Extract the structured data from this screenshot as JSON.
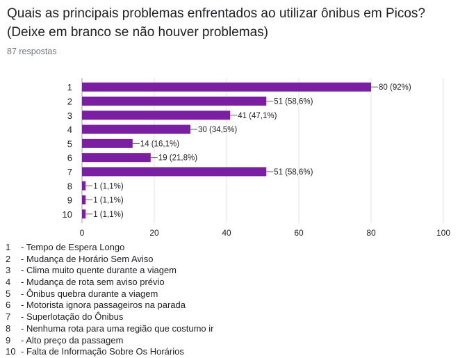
{
  "question": {
    "title_line1": "Quais as principais problemas enfrentados ao utilizar ônibus em Picos?",
    "title_line2": "(Deixe em branco se não houver problemas)",
    "responses": "87 respostas"
  },
  "colors": {
    "bar": "#7b1fa2",
    "grid": "#e0e0e0",
    "axis_text": "#202124",
    "label_text": "#202124"
  },
  "chart_data": {
    "type": "bar",
    "orientation": "horizontal",
    "categories": [
      "1",
      "2",
      "3",
      "4",
      "5",
      "6",
      "7",
      "8",
      "9",
      "10"
    ],
    "values": [
      80,
      51,
      41,
      30,
      14,
      19,
      51,
      1,
      1,
      1
    ],
    "data_labels": [
      "80 (92%)",
      "51 (58,6%)",
      "41 (47,1%)",
      "30 (34,5%)",
      "14 (16,1%)",
      "19 (21,8%)",
      "51 (58,6%)",
      "1 (1,1%)",
      "1 (1,1%)",
      "1 (1,1%)"
    ],
    "xlim": [
      0,
      100
    ],
    "xticks": [
      0,
      20,
      40,
      60,
      80,
      100
    ],
    "grid": true,
    "legend": [
      {
        "num": "1",
        "text": "- Tempo de Espera Longo"
      },
      {
        "num": "2",
        "text": "- Mudança de Horário Sem Aviso"
      },
      {
        "num": "3",
        "text": "- Clima muito quente durante a viagem"
      },
      {
        "num": "4",
        "text": "- Mudança de rota sem aviso prévio"
      },
      {
        "num": "5",
        "text": "- Ônibus quebra durante a viagem"
      },
      {
        "num": "6",
        "text": "- Motorista ignora passageiros na parada"
      },
      {
        "num": "7",
        "text": "- Superlotação do Ônibus"
      },
      {
        "num": "8",
        "text": "- Nenhuma rota para uma região que costumo ir"
      },
      {
        "num": "9",
        "text": "- Alto preço da passagem"
      },
      {
        "num": "10",
        "text": "- Falta de Informação Sobre Os Horários"
      }
    ]
  }
}
